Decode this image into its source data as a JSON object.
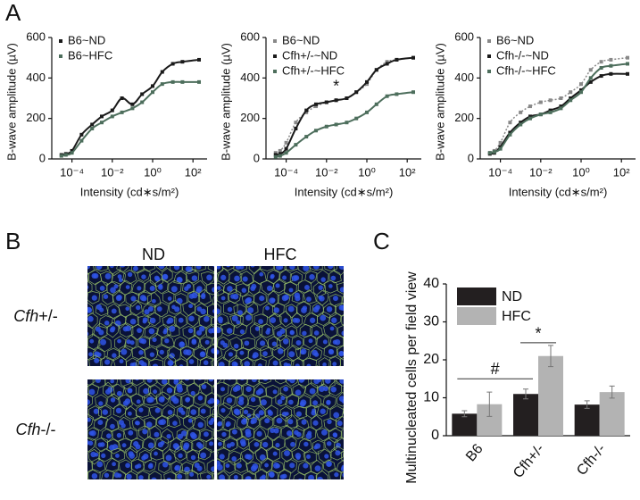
{
  "panel_labels": [
    "A",
    "B",
    "C"
  ],
  "images": {
    "columns": [
      "ND",
      "HFC"
    ],
    "rows": [
      "Cfh+/-",
      "Cfh-/-"
    ]
  },
  "chart_data": [
    {
      "type": "line",
      "ylabel": "B-wave amplitude (µV)",
      "xlabel": "Intensity (cd∗s/m²)",
      "log_x": true,
      "legend": "upper left",
      "x": [
        3e-05,
        5e-05,
        0.0001,
        0.0003,
        0.001,
        0.003,
        0.01,
        0.03,
        0.1,
        0.3,
        1,
        3,
        10,
        30,
        200
      ],
      "xlim": [
        1e-05,
        500
      ],
      "xticks": [
        {
          "value": 0.0001,
          "label": "10⁻⁴"
        },
        {
          "value": 0.01,
          "label": "10⁻²"
        },
        {
          "value": 1,
          "label": "10⁰"
        },
        {
          "value": 100,
          "label": "10²"
        }
      ],
      "ylim": [
        0,
        600
      ],
      "yticks": [
        0,
        200,
        400,
        600
      ],
      "series": [
        {
          "name": "B6~ND",
          "color": "#1a1a1a",
          "line_style": "solid",
          "values": [
            20,
            25,
            40,
            120,
            170,
            210,
            240,
            300,
            270,
            320,
            360,
            430,
            470,
            480,
            490
          ]
        },
        {
          "name": "B6~HFC",
          "color": "#4d6e5c",
          "line_style": "solid",
          "values": [
            15,
            20,
            30,
            90,
            150,
            180,
            210,
            230,
            250,
            280,
            330,
            370,
            380,
            380,
            380
          ]
        }
      ]
    },
    {
      "type": "line",
      "ylabel": "B-wave amplitude (µV)",
      "xlabel": "Intensity (cd∗s/m²)",
      "log_x": true,
      "legend": "upper left",
      "annotation": "*",
      "x": [
        3e-05,
        5e-05,
        0.0001,
        0.0003,
        0.001,
        0.003,
        0.01,
        0.03,
        0.1,
        0.3,
        1,
        3,
        10,
        30,
        200
      ],
      "xlim": [
        1e-05,
        500
      ],
      "xticks": [
        {
          "value": 0.0001,
          "label": "10⁻⁴"
        },
        {
          "value": 0.01,
          "label": "10⁻²"
        },
        {
          "value": 1,
          "label": "10⁰"
        },
        {
          "value": 100,
          "label": "10²"
        }
      ],
      "ylim": [
        0,
        600
      ],
      "yticks": [
        0,
        200,
        400,
        600
      ],
      "series": [
        {
          "name": "B6~ND",
          "color": "#888888",
          "line_style": "dotted",
          "values": [
            30,
            40,
            80,
            180,
            230,
            260,
            280,
            290,
            300,
            330,
            370,
            440,
            480,
            490,
            500
          ]
        },
        {
          "name": "Cfh+/-~ND",
          "color": "#1a1a1a",
          "line_style": "solid",
          "values": [
            20,
            25,
            50,
            150,
            240,
            270,
            280,
            290,
            300,
            330,
            380,
            440,
            470,
            490,
            500
          ]
        },
        {
          "name": "Cfh+/-~HFC",
          "color": "#4d6e5c",
          "line_style": "solid",
          "values": [
            10,
            15,
            30,
            70,
            110,
            140,
            160,
            170,
            180,
            200,
            230,
            270,
            310,
            320,
            330
          ]
        }
      ]
    },
    {
      "type": "line",
      "ylabel": "B-wave amplitude (µV)",
      "xlabel": "Intensity (cd∗s/m²)",
      "log_x": true,
      "legend": "upper left",
      "x": [
        3e-05,
        5e-05,
        0.0001,
        0.0003,
        0.001,
        0.003,
        0.01,
        0.03,
        0.1,
        0.3,
        1,
        3,
        10,
        30,
        200
      ],
      "xlim": [
        1e-05,
        500
      ],
      "xticks": [
        {
          "value": 0.0001,
          "label": "10⁻⁴"
        },
        {
          "value": 0.01,
          "label": "10⁻²"
        },
        {
          "value": 1,
          "label": "10⁰"
        },
        {
          "value": 100,
          "label": "10²"
        }
      ],
      "ylim": [
        0,
        600
      ],
      "yticks": [
        0,
        200,
        400,
        600
      ],
      "series": [
        {
          "name": "B6~ND",
          "color": "#888888",
          "line_style": "dotted",
          "values": [
            30,
            40,
            80,
            180,
            230,
            260,
            280,
            290,
            300,
            330,
            370,
            440,
            480,
            490,
            500
          ]
        },
        {
          "name": "Cfh-/-~ND",
          "color": "#1a1a1a",
          "line_style": "solid",
          "values": [
            25,
            30,
            60,
            130,
            180,
            210,
            220,
            240,
            260,
            300,
            340,
            380,
            410,
            420,
            420
          ]
        },
        {
          "name": "Cfh-/-~HFC",
          "color": "#4d6e5c",
          "line_style": "solid",
          "values": [
            30,
            35,
            50,
            120,
            170,
            200,
            220,
            230,
            250,
            290,
            330,
            400,
            450,
            460,
            470
          ]
        }
      ]
    },
    {
      "type": "bar",
      "ylabel": "Multinucleated cells per field view",
      "legend": "upper left",
      "categories": [
        "B6",
        "Cfh+/-",
        "Cfh-/-"
      ],
      "ylim": [
        0,
        40
      ],
      "yticks": [
        0,
        10,
        20,
        30,
        40
      ],
      "annotations": [
        "#",
        "*"
      ],
      "series": [
        {
          "name": "ND",
          "color": "#231f20",
          "values": [
            5.8,
            11,
            8.2
          ],
          "errors": [
            0.8,
            1.3,
            1.0
          ]
        },
        {
          "name": "HFC",
          "color": "#b3b3b3",
          "values": [
            8.3,
            21,
            11.5
          ],
          "errors": [
            3.2,
            2.8,
            1.6
          ]
        }
      ]
    }
  ]
}
